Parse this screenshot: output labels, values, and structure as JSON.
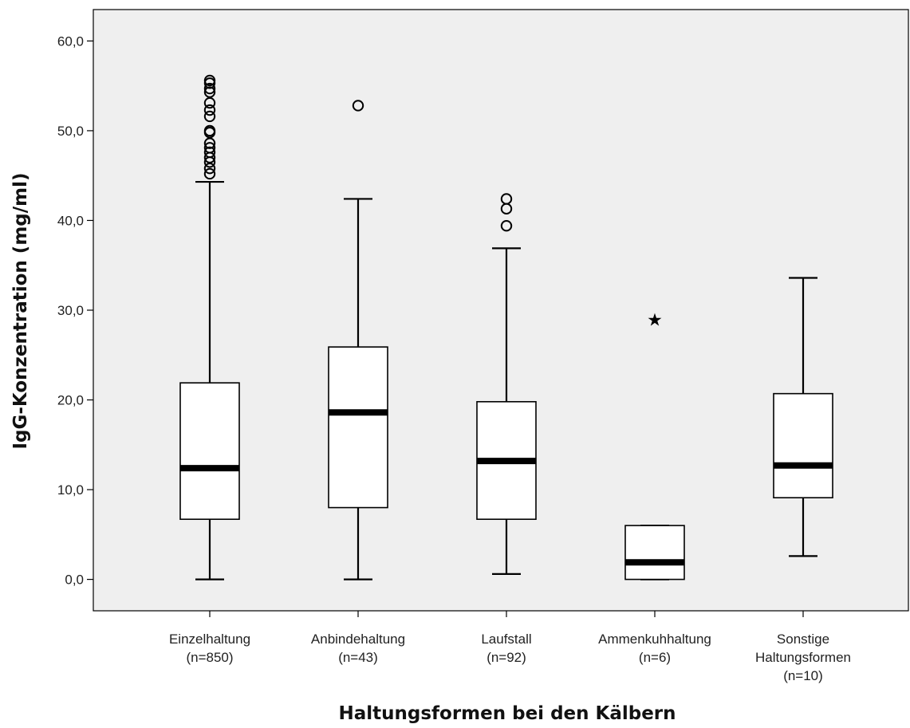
{
  "colors": {
    "plot_background": "#efefef",
    "box_fill": "#ffffff",
    "stroke": "#000000"
  },
  "chart_data": {
    "type": "boxplot",
    "title": "",
    "xlabel": "Haltungsformen bei den Kälbern",
    "ylabel": "IgG-Konzentration (mg/ml)",
    "ylim": [
      -3.5,
      63.5
    ],
    "yticks": [
      0,
      10,
      20,
      30,
      40,
      50,
      60
    ],
    "ytick_labels": [
      "0,0",
      "10,0",
      "20,0",
      "30,0",
      "40,0",
      "50,0",
      "60,0"
    ],
    "grid": false,
    "categories": [
      {
        "label_lines": [
          "Einzelhaltung",
          "(n=850)"
        ]
      },
      {
        "label_lines": [
          "Anbindehaltung",
          "(n=43)"
        ]
      },
      {
        "label_lines": [
          "Laufstall",
          "(n=92)"
        ]
      },
      {
        "label_lines": [
          "Ammenkuhhaltung",
          "(n=6)"
        ]
      },
      {
        "label_lines": [
          "Sonstige",
          "Haltungsformen",
          "(n=10)"
        ]
      }
    ],
    "boxes": [
      {
        "whisker_low": 0.0,
        "q1": 6.7,
        "median": 12.4,
        "q3": 21.9,
        "whisker_high": 44.3,
        "outliers": [
          45.2,
          45.8,
          46.5,
          47.0,
          47.6,
          48.1,
          48.6,
          49.8,
          50.0,
          51.6,
          52.3,
          53.1,
          54.3,
          54.7,
          55.3,
          55.6
        ],
        "extremes": []
      },
      {
        "whisker_low": 0.0,
        "q1": 8.0,
        "median": 18.6,
        "q3": 25.9,
        "whisker_high": 42.4,
        "outliers": [
          52.8
        ],
        "extremes": []
      },
      {
        "whisker_low": 0.6,
        "q1": 6.7,
        "median": 13.2,
        "q3": 19.8,
        "whisker_high": 36.9,
        "outliers": [
          39.4,
          41.3,
          42.4
        ],
        "extremes": []
      },
      {
        "whisker_low": 0.0,
        "q1": 0.0,
        "median": 1.9,
        "q3": 6.0,
        "whisker_high": 6.0,
        "outliers": [],
        "extremes": [
          29.0
        ]
      },
      {
        "whisker_low": 2.6,
        "q1": 9.1,
        "median": 12.7,
        "q3": 20.7,
        "whisker_high": 33.6,
        "outliers": [],
        "extremes": []
      }
    ]
  }
}
